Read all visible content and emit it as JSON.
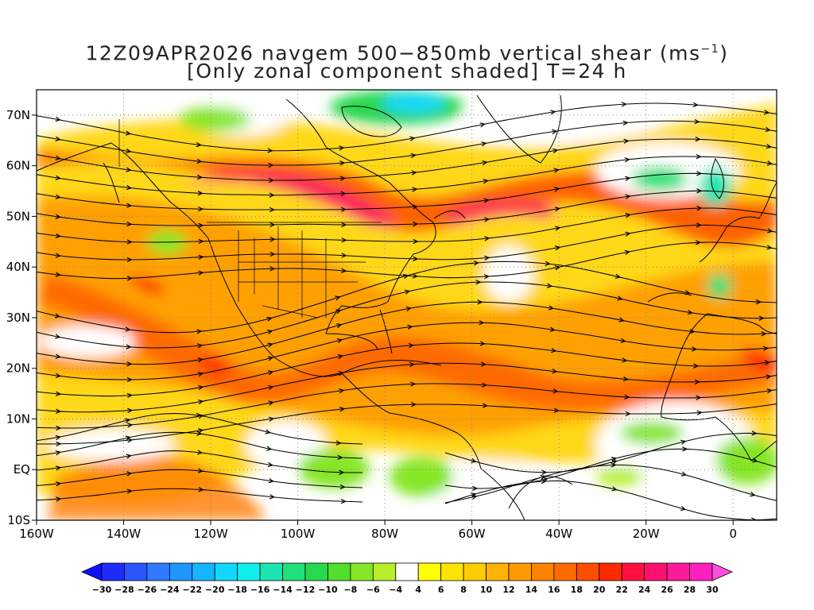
{
  "title": {
    "line1": "12Z09APR2026 navgem 500−850mb vertical shear (ms",
    "line1_sup": "−1",
    "line1_end": ")",
    "line2": "[Only zonal component shaded] T=24 h"
  },
  "map": {
    "lon_range": [
      -160,
      10
    ],
    "lat_range": [
      -10,
      75
    ],
    "lon_ticks": [
      {
        "v": -160,
        "label": "160W"
      },
      {
        "v": -140,
        "label": "140W"
      },
      {
        "v": -120,
        "label": "120W"
      },
      {
        "v": -100,
        "label": "100W"
      },
      {
        "v": -80,
        "label": "80W"
      },
      {
        "v": -60,
        "label": "60W"
      },
      {
        "v": -40,
        "label": "40W"
      },
      {
        "v": -20,
        "label": "20W"
      },
      {
        "v": 0,
        "label": "0"
      }
    ],
    "lat_ticks": [
      {
        "v": 70,
        "label": "70N"
      },
      {
        "v": 60,
        "label": "60N"
      },
      {
        "v": 50,
        "label": "50N"
      },
      {
        "v": 40,
        "label": "40N"
      },
      {
        "v": 30,
        "label": "30N"
      },
      {
        "v": 20,
        "label": "20N"
      },
      {
        "v": 10,
        "label": "10N"
      },
      {
        "v": 0,
        "label": "EQ"
      },
      {
        "v": -10,
        "label": "10S"
      }
    ]
  },
  "colorbar": {
    "labels": [
      "−30",
      "−28",
      "−26",
      "−24",
      "−22",
      "−20",
      "−18",
      "−16",
      "−14",
      "−12",
      "−10",
      "−8",
      "−6",
      "−4",
      "4",
      "6",
      "8",
      "10",
      "12",
      "14",
      "16",
      "18",
      "20",
      "22",
      "24",
      "26",
      "28",
      "30"
    ],
    "colors": [
      "#1e2cff",
      "#2a55ff",
      "#2f78ff",
      "#1f96ff",
      "#15b5ff",
      "#12d8ff",
      "#10eeee",
      "#19e6b0",
      "#1fe07a",
      "#28d84e",
      "#52de2a",
      "#86e628",
      "#b8ee2a",
      "#ffffff",
      "#ffff00",
      "#ffe400",
      "#ffcc00",
      "#ffb300",
      "#ff9a00",
      "#ff8200",
      "#ff6a00",
      "#ff4e00",
      "#ff2a00",
      "#ff1040",
      "#ff1070",
      "#ff1a99",
      "#ff20c0"
    ],
    "low_arrow": "#1010ff",
    "high_arrow": "#ff4de0"
  }
}
